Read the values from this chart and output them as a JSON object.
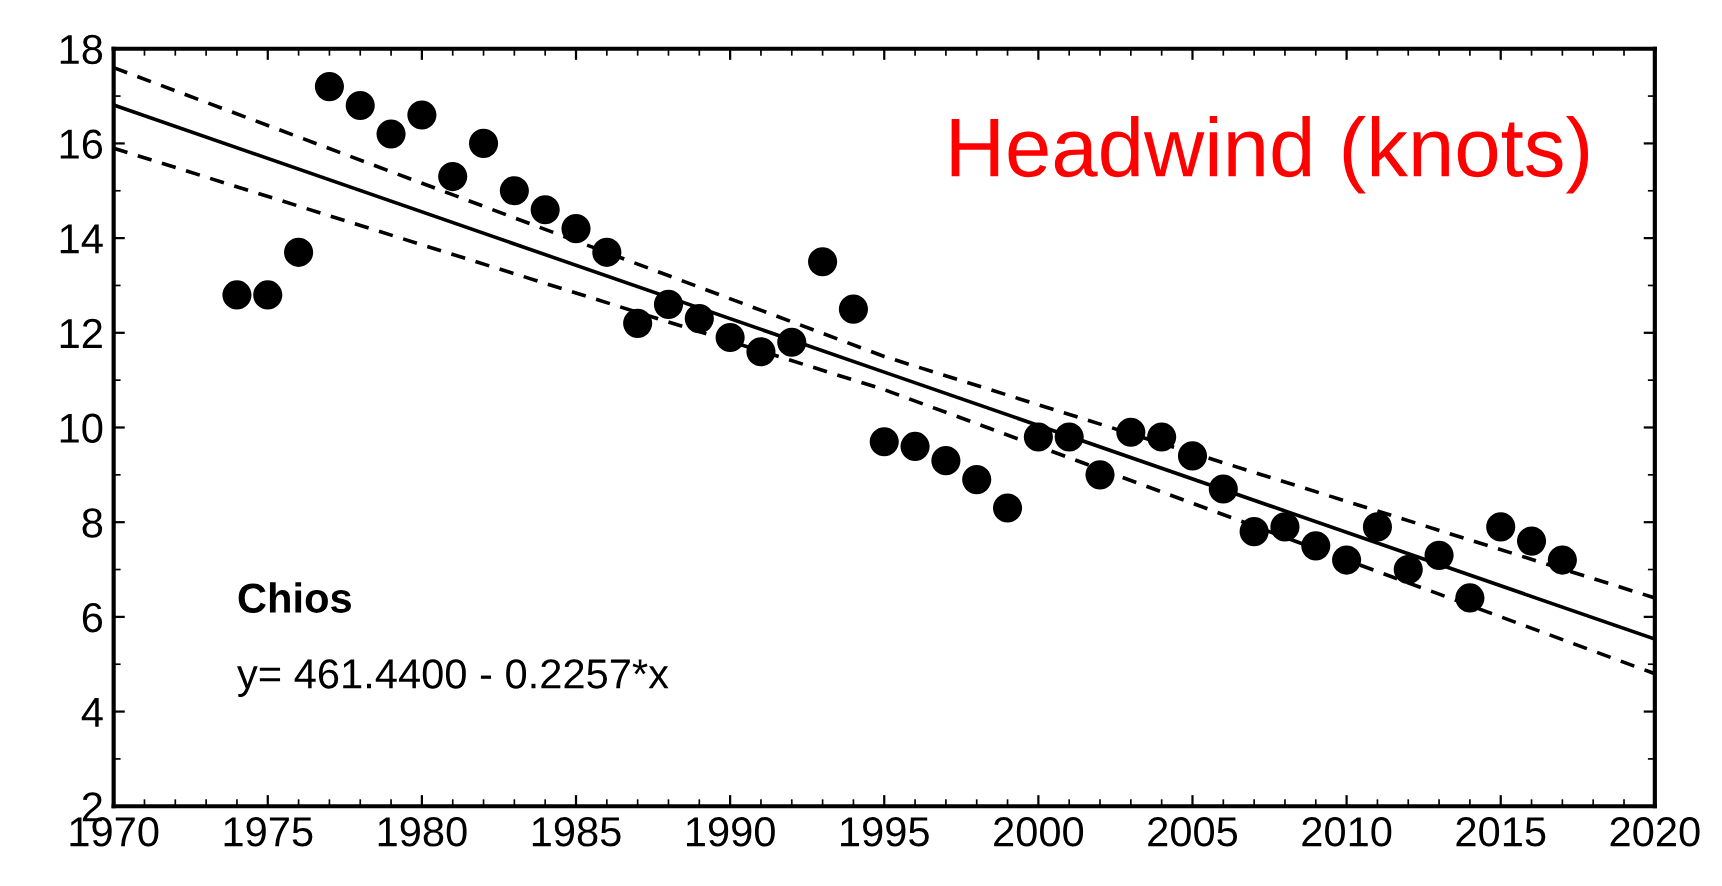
{
  "chart_data": {
    "type": "scatter",
    "title": "Headwind (knots)",
    "annotations": [
      "Chios",
      "y= 461.4400 - 0.2257*x"
    ],
    "xlim": [
      1970,
      2020
    ],
    "xticks": [
      1970,
      1975,
      1980,
      1985,
      1990,
      1995,
      2000,
      2005,
      2010,
      2015,
      2020
    ],
    "ylim": [
      2,
      18
    ],
    "yticks": [
      2,
      4,
      6,
      8,
      10,
      12,
      14,
      16,
      18
    ],
    "grid": false,
    "series": [
      {
        "color": "#000000",
        "marker": "circle",
        "x": [
          1974,
          1975,
          1976,
          1977,
          1978,
          1979,
          1980,
          1981,
          1982,
          1983,
          1984,
          1985,
          1986,
          1987,
          1988,
          1989,
          1990,
          1991,
          1992,
          1993,
          1994,
          1995,
          1996,
          1997,
          1998,
          1999,
          2000,
          2001,
          2002,
          2003,
          2004,
          2005,
          2006,
          2007,
          2008,
          2009,
          2010,
          2011,
          2012,
          2013,
          2014,
          2015,
          2016,
          2017
        ],
        "values": [
          12.8,
          12.8,
          13.7,
          17.2,
          16.8,
          16.2,
          16.6,
          15.3,
          16.0,
          15.0,
          14.6,
          14.2,
          13.7,
          12.2,
          12.6,
          12.3,
          11.9,
          11.6,
          11.8,
          13.5,
          12.5,
          9.7,
          9.6,
          9.3,
          8.9,
          8.3,
          9.8,
          9.8,
          9.0,
          9.9,
          9.8,
          9.4,
          8.7,
          7.8,
          7.9,
          7.5,
          7.2,
          7.9,
          7.0,
          7.3,
          6.4,
          7.9,
          7.6,
          7.2
        ]
      },
      {
        "type": "line",
        "color": "#000000",
        "line_style": "solid",
        "x": [
          1970,
          1995,
          2020
        ],
        "values": [
          16.81,
          11.17,
          5.53
        ]
      },
      {
        "type": "line",
        "color": "#000000",
        "line_style": "dashed",
        "x": [
          1970,
          1995,
          2020
        ],
        "values": [
          17.6,
          11.5,
          6.4
        ]
      },
      {
        "type": "line",
        "color": "#000000",
        "line_style": "dashed",
        "x": [
          1970,
          1995,
          2020
        ],
        "values": [
          15.9,
          10.8,
          4.8
        ]
      }
    ]
  }
}
